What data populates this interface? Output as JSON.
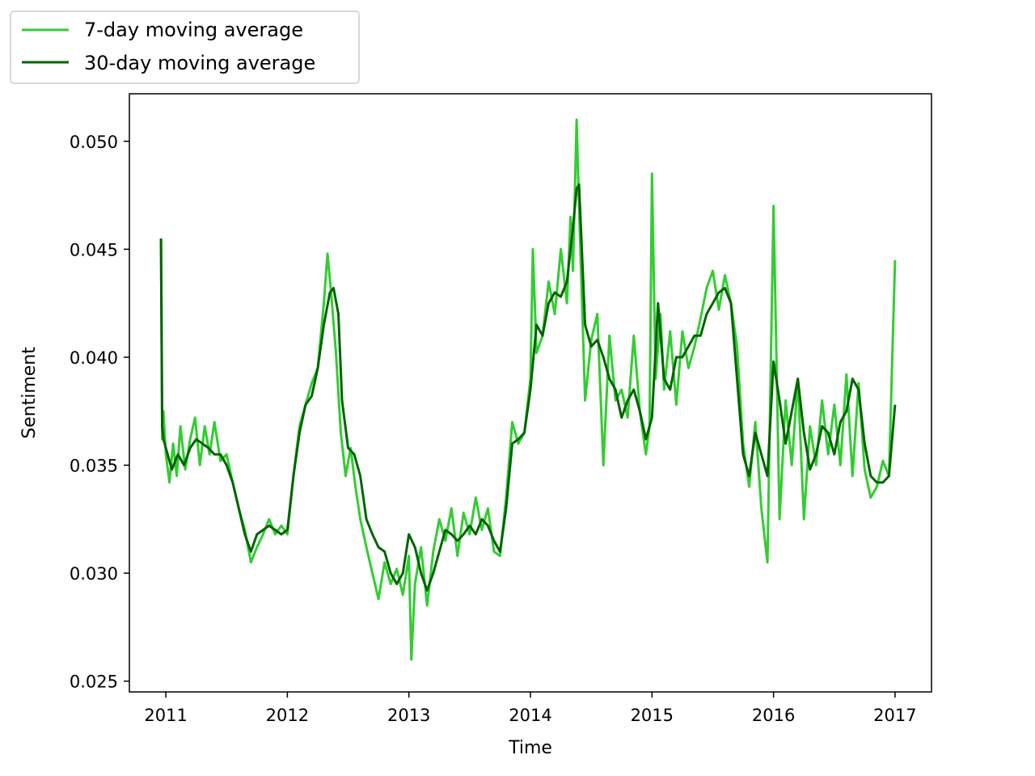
{
  "chart_data": {
    "type": "line",
    "title": "",
    "xlabel": "Time",
    "ylabel": "Sentiment",
    "xlim": [
      2010.7,
      2017.3
    ],
    "ylim": [
      0.0245,
      0.0522
    ],
    "x_ticks": [
      2011,
      2012,
      2013,
      2014,
      2015,
      2016,
      2017
    ],
    "x_tick_labels": [
      "2011",
      "2012",
      "2013",
      "2014",
      "2015",
      "2016",
      "2017"
    ],
    "y_ticks": [
      0.025,
      0.03,
      0.035,
      0.04,
      0.045,
      0.05
    ],
    "y_tick_labels": [
      "0.025",
      "0.030",
      "0.035",
      "0.040",
      "0.045",
      "0.050"
    ],
    "grid": false,
    "legend_position": "top-left",
    "series": [
      {
        "name": "7-day moving average",
        "color": "#32cd32",
        "x": [
          2010.96,
          2010.97,
          2010.98,
          2011.0,
          2011.03,
          2011.06,
          2011.09,
          2011.12,
          2011.16,
          2011.2,
          2011.24,
          2011.28,
          2011.32,
          2011.36,
          2011.4,
          2011.45,
          2011.5,
          2011.55,
          2011.6,
          2011.65,
          2011.7,
          2011.75,
          2011.8,
          2011.85,
          2011.9,
          2011.95,
          2012.0,
          2012.05,
          2012.1,
          2012.15,
          2012.2,
          2012.25,
          2012.3,
          2012.33,
          2012.36,
          2012.4,
          2012.44,
          2012.48,
          2012.52,
          2012.56,
          2012.6,
          2012.65,
          2012.7,
          2012.75,
          2012.8,
          2012.85,
          2012.9,
          2012.95,
          2013.0,
          2013.02,
          2013.05,
          2013.1,
          2013.15,
          2013.2,
          2013.25,
          2013.3,
          2013.35,
          2013.4,
          2013.45,
          2013.5,
          2013.55,
          2013.6,
          2013.65,
          2013.7,
          2013.75,
          2013.8,
          2013.85,
          2013.9,
          2013.95,
          2014.0,
          2014.02,
          2014.05,
          2014.1,
          2014.15,
          2014.2,
          2014.25,
          2014.3,
          2014.33,
          2014.35,
          2014.38,
          2014.4,
          2014.45,
          2014.5,
          2014.55,
          2014.6,
          2014.65,
          2014.7,
          2014.75,
          2014.8,
          2014.85,
          2014.9,
          2014.95,
          2014.98,
          2015.0,
          2015.03,
          2015.07,
          2015.1,
          2015.15,
          2015.2,
          2015.25,
          2015.3,
          2015.35,
          2015.4,
          2015.45,
          2015.5,
          2015.55,
          2015.6,
          2015.65,
          2015.7,
          2015.75,
          2015.8,
          2015.85,
          2015.9,
          2015.95,
          2016.0,
          2016.05,
          2016.1,
          2016.15,
          2016.2,
          2016.25,
          2016.3,
          2016.35,
          2016.4,
          2016.45,
          2016.5,
          2016.55,
          2016.6,
          2016.65,
          2016.7,
          2016.75,
          2016.8,
          2016.85,
          2016.9,
          2016.95,
          2017.0
        ],
        "values": [
          0.0455,
          0.0362,
          0.0375,
          0.0355,
          0.0342,
          0.036,
          0.0345,
          0.0368,
          0.0348,
          0.0362,
          0.0372,
          0.035,
          0.0368,
          0.0355,
          0.037,
          0.0352,
          0.0355,
          0.0342,
          0.033,
          0.032,
          0.0305,
          0.0312,
          0.0318,
          0.0325,
          0.0318,
          0.0322,
          0.0318,
          0.0345,
          0.0368,
          0.0378,
          0.0388,
          0.0395,
          0.0425,
          0.0448,
          0.043,
          0.0402,
          0.0365,
          0.0345,
          0.0358,
          0.034,
          0.0325,
          0.0312,
          0.03,
          0.0288,
          0.0305,
          0.0295,
          0.0302,
          0.029,
          0.0308,
          0.026,
          0.0295,
          0.0312,
          0.0285,
          0.031,
          0.0325,
          0.0315,
          0.033,
          0.0308,
          0.0328,
          0.0318,
          0.0335,
          0.032,
          0.033,
          0.031,
          0.0308,
          0.0335,
          0.037,
          0.036,
          0.0365,
          0.039,
          0.045,
          0.0402,
          0.041,
          0.0435,
          0.042,
          0.045,
          0.0425,
          0.0465,
          0.044,
          0.051,
          0.047,
          0.038,
          0.0408,
          0.042,
          0.035,
          0.041,
          0.038,
          0.0385,
          0.0372,
          0.041,
          0.0375,
          0.0355,
          0.0368,
          0.0485,
          0.039,
          0.042,
          0.0385,
          0.0412,
          0.0378,
          0.0412,
          0.0395,
          0.0405,
          0.0418,
          0.0432,
          0.044,
          0.0422,
          0.0438,
          0.0425,
          0.0405,
          0.036,
          0.034,
          0.037,
          0.033,
          0.0305,
          0.047,
          0.0325,
          0.038,
          0.035,
          0.039,
          0.0325,
          0.0368,
          0.035,
          0.038,
          0.0355,
          0.0378,
          0.035,
          0.0392,
          0.0345,
          0.0388,
          0.0348,
          0.0335,
          0.034,
          0.0352,
          0.0345,
          0.0445
        ]
      },
      {
        "name": "30-day moving average",
        "color": "#006400",
        "x": [
          2010.96,
          2010.97,
          2010.98,
          2011.0,
          2011.05,
          2011.1,
          2011.15,
          2011.2,
          2011.25,
          2011.3,
          2011.35,
          2011.4,
          2011.45,
          2011.5,
          2011.55,
          2011.6,
          2011.65,
          2011.7,
          2011.75,
          2011.8,
          2011.85,
          2011.9,
          2011.95,
          2012.0,
          2012.05,
          2012.1,
          2012.15,
          2012.2,
          2012.25,
          2012.3,
          2012.35,
          2012.38,
          2012.42,
          2012.45,
          2012.5,
          2012.55,
          2012.6,
          2012.65,
          2012.7,
          2012.75,
          2012.8,
          2012.85,
          2012.9,
          2012.95,
          2013.0,
          2013.05,
          2013.1,
          2013.15,
          2013.2,
          2013.25,
          2013.3,
          2013.35,
          2013.4,
          2013.45,
          2013.5,
          2013.55,
          2013.6,
          2013.65,
          2013.7,
          2013.75,
          2013.8,
          2013.85,
          2013.9,
          2013.95,
          2014.0,
          2014.05,
          2014.1,
          2014.15,
          2014.2,
          2014.25,
          2014.3,
          2014.35,
          2014.38,
          2014.4,
          2014.45,
          2014.5,
          2014.55,
          2014.6,
          2014.65,
          2014.7,
          2014.75,
          2014.8,
          2014.85,
          2014.9,
          2014.95,
          2015.0,
          2015.05,
          2015.1,
          2015.15,
          2015.2,
          2015.25,
          2015.3,
          2015.35,
          2015.4,
          2015.45,
          2015.5,
          2015.55,
          2015.6,
          2015.65,
          2015.7,
          2015.75,
          2015.8,
          2015.85,
          2015.9,
          2015.95,
          2016.0,
          2016.05,
          2016.1,
          2016.15,
          2016.2,
          2016.25,
          2016.3,
          2016.35,
          2016.4,
          2016.45,
          2016.5,
          2016.55,
          2016.6,
          2016.65,
          2016.7,
          2016.75,
          2016.8,
          2016.85,
          2016.9,
          2016.95,
          2017.0
        ],
        "values": [
          0.0455,
          0.0368,
          0.0362,
          0.0358,
          0.0348,
          0.0355,
          0.035,
          0.0358,
          0.0362,
          0.036,
          0.0358,
          0.0355,
          0.0355,
          0.035,
          0.0342,
          0.033,
          0.0318,
          0.031,
          0.0318,
          0.032,
          0.0322,
          0.032,
          0.0318,
          0.032,
          0.0345,
          0.0365,
          0.0378,
          0.0382,
          0.0395,
          0.0415,
          0.043,
          0.0432,
          0.042,
          0.038,
          0.0358,
          0.0355,
          0.0345,
          0.0325,
          0.0318,
          0.0312,
          0.031,
          0.03,
          0.0295,
          0.03,
          0.0318,
          0.0312,
          0.03,
          0.0292,
          0.03,
          0.031,
          0.032,
          0.0318,
          0.0315,
          0.0318,
          0.0322,
          0.0318,
          0.0325,
          0.0322,
          0.0315,
          0.031,
          0.033,
          0.036,
          0.0362,
          0.0365,
          0.0385,
          0.0415,
          0.041,
          0.0425,
          0.043,
          0.0428,
          0.0435,
          0.046,
          0.0478,
          0.048,
          0.0415,
          0.0405,
          0.0408,
          0.04,
          0.039,
          0.0385,
          0.0372,
          0.038,
          0.0385,
          0.0375,
          0.0362,
          0.0372,
          0.0425,
          0.039,
          0.0385,
          0.04,
          0.04,
          0.0405,
          0.041,
          0.041,
          0.042,
          0.0425,
          0.043,
          0.0432,
          0.0425,
          0.039,
          0.0355,
          0.0345,
          0.0365,
          0.0355,
          0.0345,
          0.0398,
          0.038,
          0.036,
          0.0375,
          0.039,
          0.0365,
          0.0348,
          0.0355,
          0.0368,
          0.0365,
          0.0355,
          0.037,
          0.0375,
          0.039,
          0.0385,
          0.036,
          0.0345,
          0.0342,
          0.0342,
          0.0345,
          0.0378
        ]
      }
    ]
  }
}
